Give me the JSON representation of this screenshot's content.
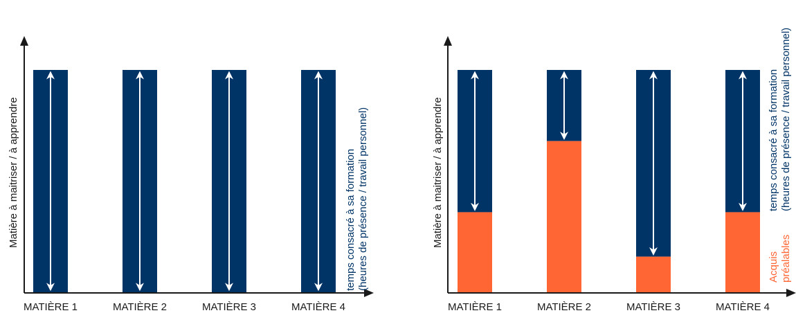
{
  "colors": {
    "navy": "#003366",
    "orange": "#FF6633",
    "axis": "#1a1a1a",
    "arrow": "#ffffff"
  },
  "chart_data": [
    {
      "type": "bar",
      "ylabel": "Matière à maitriser / à apprendre",
      "categories": [
        "MATIÈRE 1",
        "MATIÈRE 2",
        "MATIÈRE 3",
        "MATIÈRE 4"
      ],
      "time_label_line1": "temps consacré à sa formation",
      "time_label_line2": "(heures de présence / travail personnel)",
      "series": [
        {
          "key": "prior",
          "values": [
            0,
            0,
            0,
            0
          ]
        },
        {
          "key": "time",
          "values": [
            100,
            100,
            100,
            100
          ]
        }
      ],
      "ylim": [
        0,
        100
      ]
    },
    {
      "type": "bar",
      "ylabel": "Matière à maitriser / à apprendre",
      "categories": [
        "MATIÈRE 1",
        "MATIÈRE 2",
        "MATIÈRE 3",
        "MATIÈRE 4"
      ],
      "time_label_line1": "temps consacré à sa formation",
      "time_label_line2": "(heures de présence / travail personnel)",
      "prior_label_line1": "Acquis",
      "prior_label_line2": "préalables",
      "series": [
        {
          "key": "prior",
          "values": [
            36,
            68,
            16,
            36
          ]
        },
        {
          "key": "time",
          "values": [
            64,
            32,
            84,
            64
          ]
        }
      ],
      "ylim": [
        0,
        100
      ]
    }
  ]
}
